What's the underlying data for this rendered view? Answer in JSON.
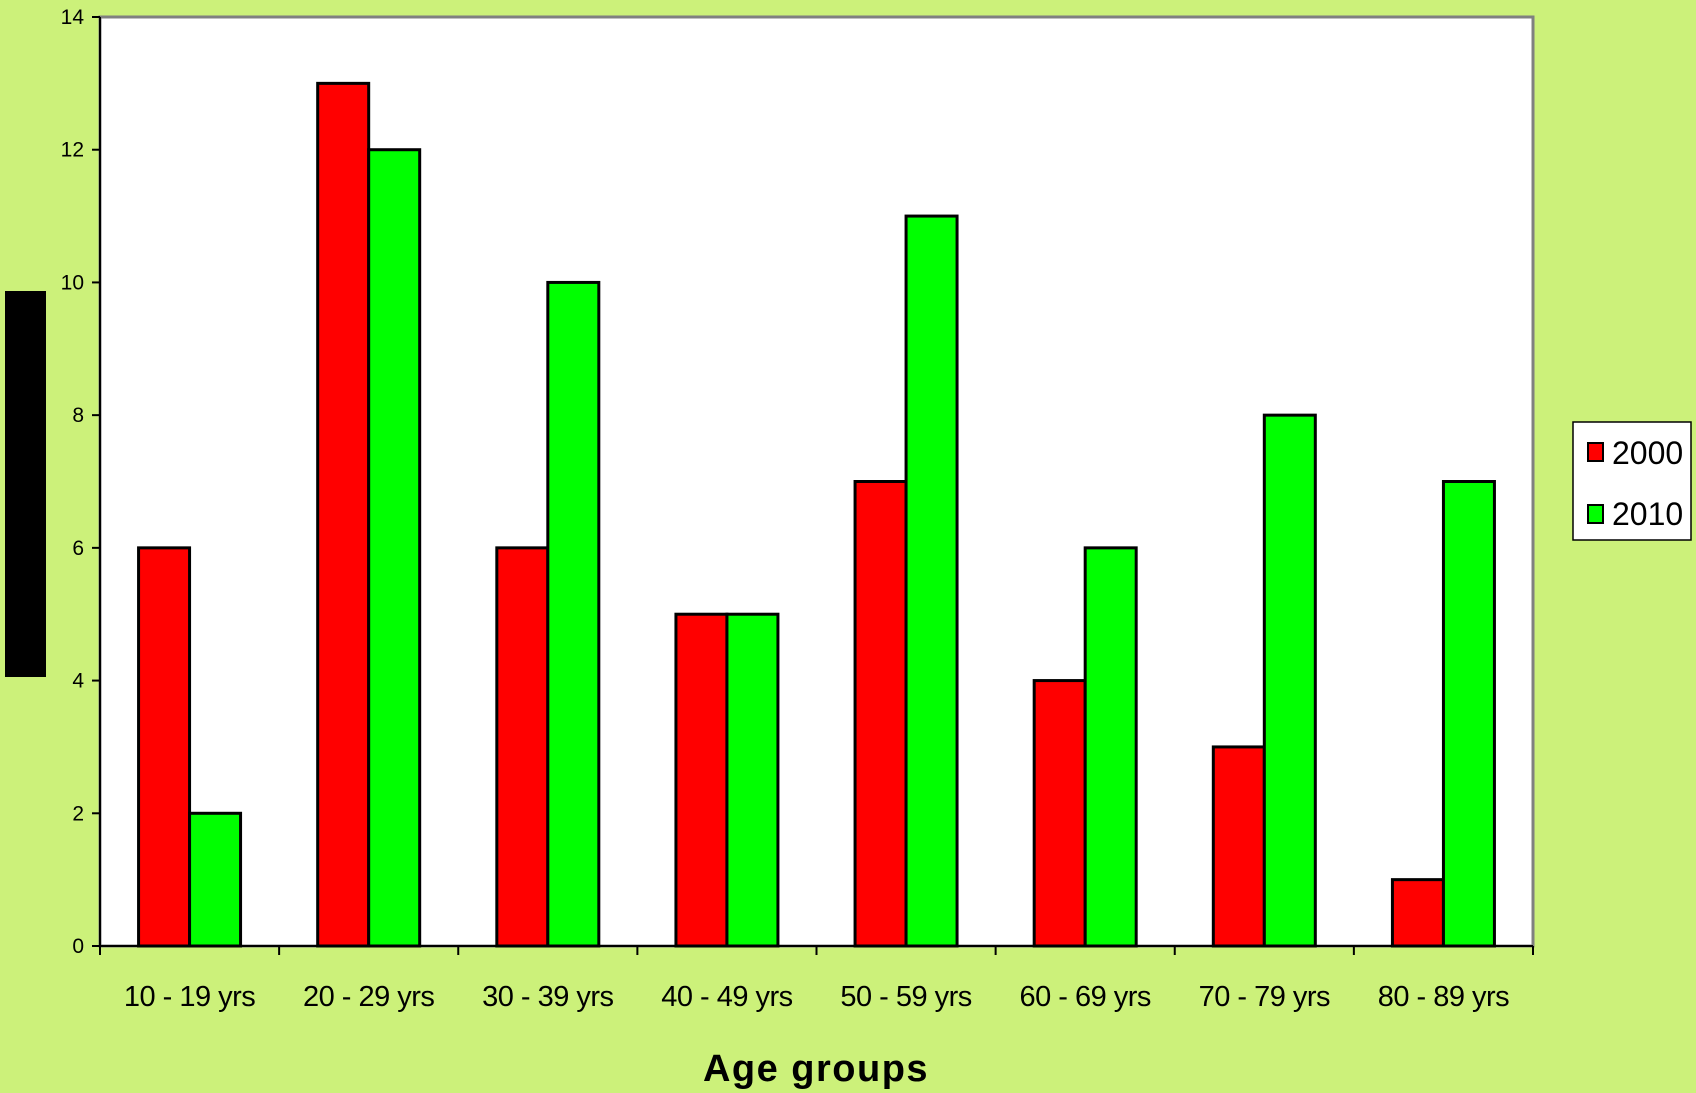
{
  "colors": {
    "background": "#ccf17a",
    "plot_area": "#ffffff",
    "series_2000": "#ff0000",
    "series_2010": "#00ff00",
    "ylabel_block": "#000000"
  },
  "chart_data": {
    "type": "bar",
    "title": "",
    "xlabel": "Age groups",
    "ylabel": "",
    "ylim": [
      0,
      14
    ],
    "yticks": [
      0,
      2,
      4,
      6,
      8,
      10,
      12,
      14
    ],
    "grid": false,
    "legend_position": "right",
    "categories": [
      "10 - 19 yrs",
      "20 - 29 yrs",
      "30 - 39 yrs",
      "40 - 49 yrs",
      "50 - 59 yrs",
      "60 - 69 yrs",
      "70 - 79 yrs",
      "80 - 89 yrs"
    ],
    "series": [
      {
        "name": "2000",
        "color": "#ff0000",
        "values": [
          6,
          13,
          6,
          5,
          7,
          4,
          3,
          1
        ]
      },
      {
        "name": "2010",
        "color": "#00ff00",
        "values": [
          2,
          12,
          10,
          5,
          11,
          6,
          8,
          7
        ]
      }
    ]
  }
}
